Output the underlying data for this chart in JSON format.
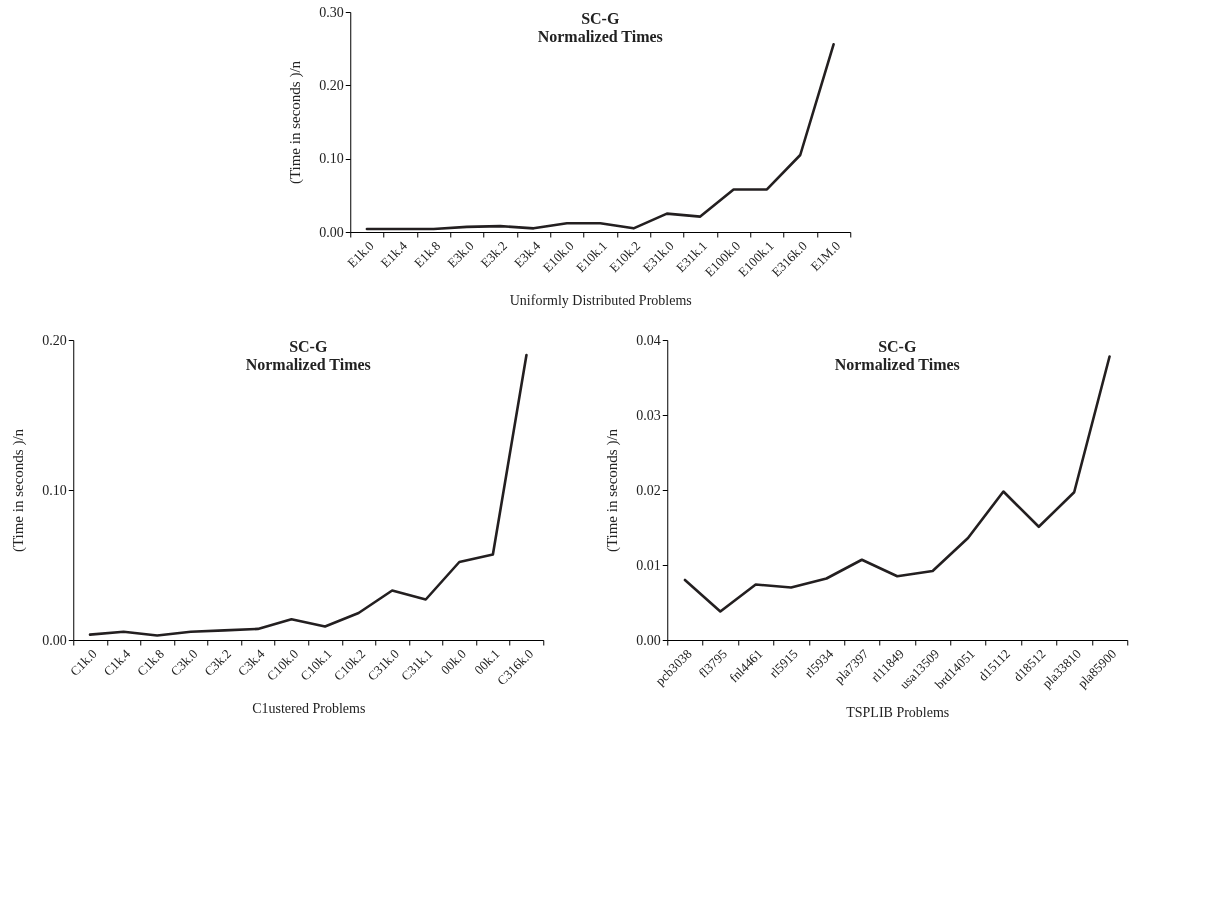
{
  "chart_data": [
    {
      "type": "line",
      "title": "SC-G",
      "subtitle": "Normalized Times",
      "xlabel": "Uniformly Distributed Problems",
      "ylabel": "(Time in seconds )/n",
      "color": "#231f20",
      "categories": [
        "E1k.0",
        "E1k.4",
        "E1k.8",
        "E3k.0",
        "E3k.2",
        "E3k.4",
        "E10k.0",
        "E10k.1",
        "E10k.2",
        "E31k.0",
        "E31k.1",
        "E100k.0",
        "E100k.1",
        "E316k.0",
        "E1M.0"
      ],
      "values": [
        0.004,
        0.004,
        0.004,
        0.007,
        0.008,
        0.005,
        0.012,
        0.012,
        0.005,
        0.025,
        0.021,
        0.058,
        0.058,
        0.105,
        0.256
      ],
      "ylim": [
        0,
        0.3
      ],
      "yticks": [
        {
          "value": 0,
          "label": "0.00"
        },
        {
          "value": 0.1,
          "label": "0.10"
        },
        {
          "value": 0.2,
          "label": "0.20"
        },
        {
          "value": 0.3,
          "label": "0.30"
        }
      ]
    },
    {
      "type": "line",
      "title": "SC-G",
      "subtitle": "Normalized Times",
      "xlabel": "C1ustered Problems",
      "ylabel": "(Time in seconds )/n",
      "color": "#231f20",
      "categories": [
        "C1k.0",
        "C1k.4",
        "C1k.8",
        "C3k.0",
        "C3k.2",
        "C3k.4",
        "C10k.0",
        "C10k.1",
        "C10k.2",
        "C31k.0",
        "C31k.1",
        "00k.0",
        "00k.1",
        "C316k.0"
      ],
      "values": [
        0.0036,
        0.0055,
        0.003,
        0.0055,
        0.0064,
        0.0074,
        0.0138,
        0.009,
        0.018,
        0.033,
        0.027,
        0.052,
        0.057,
        0.19
      ],
      "ylim": [
        0,
        0.2
      ],
      "yticks": [
        {
          "value": 0,
          "label": "0.00"
        },
        {
          "value": 0.1,
          "label": "0.10"
        },
        {
          "value": 0.2,
          "label": "0.20"
        }
      ]
    },
    {
      "type": "line",
      "title": "SC-G",
      "subtitle": "Normalized Times",
      "xlabel": "TSPLIB Problems",
      "ylabel": "(Time in seconds )/n",
      "color": "#231f20",
      "categories": [
        "pcb3038",
        "fl3795",
        "fnl4461",
        "rl5915",
        "rl5934",
        "pla7397",
        "rl11849",
        "usa13509",
        "brd14051",
        "d15112",
        "d18512",
        "pla33810",
        "pla85900"
      ],
      "values": [
        0.008,
        0.0038,
        0.0074,
        0.007,
        0.0082,
        0.0107,
        0.0085,
        0.0092,
        0.0136,
        0.0198,
        0.0151,
        0.0197,
        0.0378
      ],
      "ylim": [
        0,
        0.04
      ],
      "yticks": [
        {
          "value": 0,
          "label": "0.00"
        },
        {
          "value": 0.01,
          "label": "0.01"
        },
        {
          "value": 0.02,
          "label": "0.02"
        },
        {
          "value": 0.03,
          "label": "0.03"
        },
        {
          "value": 0.04,
          "label": "0.04"
        }
      ]
    }
  ]
}
